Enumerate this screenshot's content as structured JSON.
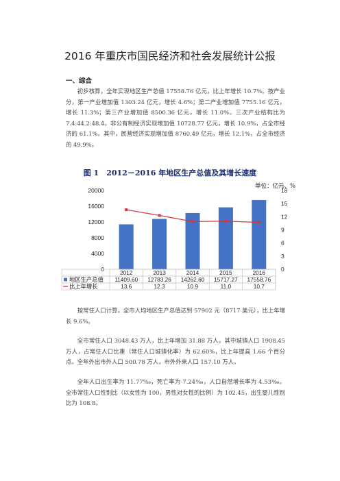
{
  "doc_title": "2016 年重庆市国民经济和社会发展统计公报",
  "section1_heading": "一、综合",
  "paragraphs": [
    "初步核算，全年实现地区生产总值 17558.76 亿元，比上年增长 10.7%。按产业分，第一产业增加值 1303.24 亿元，增长 4.6%；第二产业增加值 7755.16 亿元，增长 11.3%；第三产业增加值 8500.36 亿元，增长 11.0%。三次产业结构比为 7.4:44.2:48.4。非公有制经济实现增加值 10728.77 亿元，增长 10.9%，占全市经济的 61.1%。其中，民营经济实现增加值 8760.49 亿元，增长 12.1%，占全市经济的 49.9%。",
    "按常住人口计算，全市人均地区生产总值达到 57902 元（8717 美元），比上年增长 9.6%。",
    "全市常住人口 3048.43 万人，比上年增加 31.88 万人，其中城镇人口 1908.45 万人，占常住人口比重（常住人口城镇化率）为 62.60%，比上年提高 1.66 个百分点。全年外出市外人口 500.78 万人，市外外来人口 157.10 万人。",
    "全年人口出生率为 11.77‰，死亡率为 7.24‰，人口自然增长率为 4.53‰。全市常住人口性别比（以女性为 100，男性对女性的比例）为 102.45，出生婴儿性别比为 108.8。"
  ],
  "chart_data": {
    "type": "bar",
    "title": "图 1　2012－2016 年地区生产总值及其增长速度",
    "unit_label": "单位：亿元、%",
    "categories": [
      "2012",
      "2013",
      "2014",
      "2015",
      "2016"
    ],
    "series": [
      {
        "name": "地区生产总值",
        "type": "bar",
        "axis": "left",
        "values": [
          11409.6,
          12783.26,
          14262.6,
          15717.27,
          17558.76
        ],
        "labels": [
          "11409.60",
          "12783.26",
          "14262.60",
          "15717.27",
          "17558.76"
        ],
        "color": "#4472c4"
      },
      {
        "name": "比上年增长",
        "type": "line",
        "axis": "right",
        "values": [
          13.6,
          12.3,
          10.9,
          11.0,
          10.7
        ],
        "labels": [
          "13.6",
          "12.3",
          "10.9",
          "11.0",
          "10.7"
        ],
        "color": "#d9363e"
      }
    ],
    "ylim_left": [
      0,
      20000
    ],
    "yticks_left": [
      "0",
      "4000",
      "8000",
      "12000",
      "16000",
      "20000"
    ],
    "ylim_right": [
      0,
      18
    ],
    "yticks_right": [
      "0",
      "3",
      "6",
      "9",
      "12",
      "15",
      "18"
    ],
    "legend": "data-table-below",
    "grid": false
  }
}
